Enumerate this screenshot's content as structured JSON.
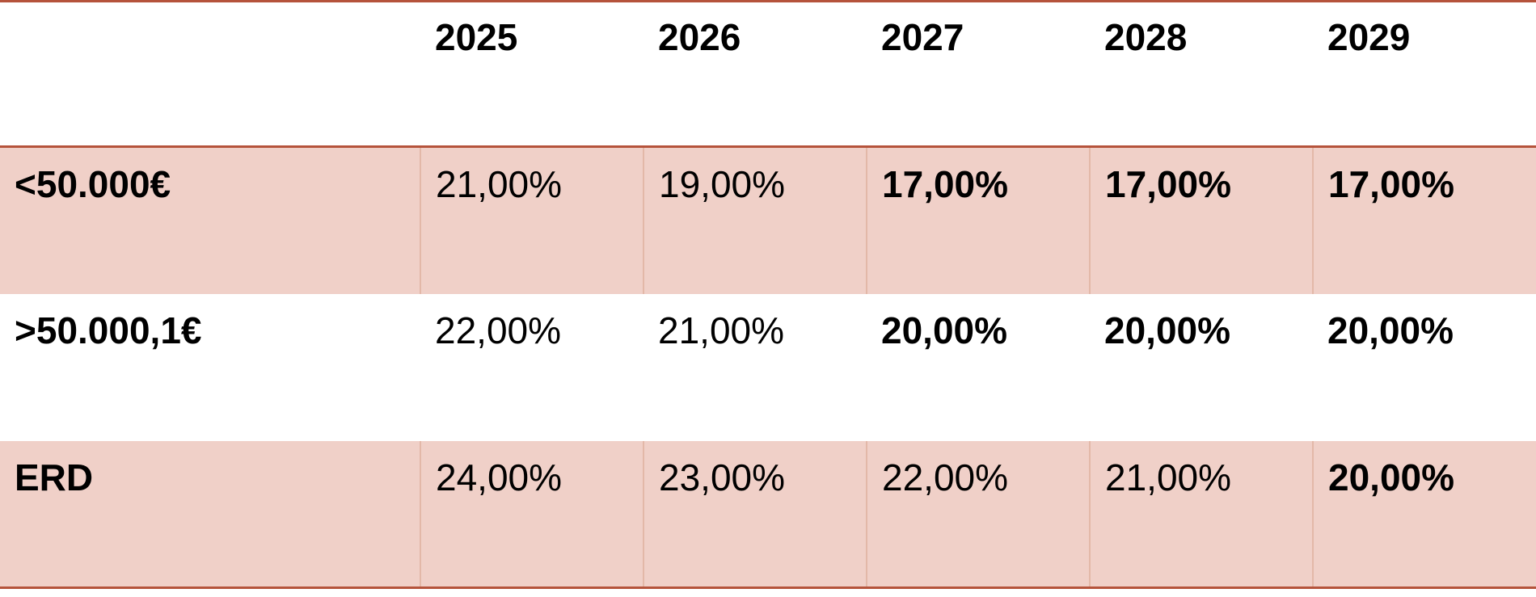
{
  "table": {
    "headers": [
      "",
      "2025",
      "2026",
      "2027",
      "2028",
      "2029"
    ],
    "rows": [
      {
        "label": "<50.000€",
        "cells": [
          {
            "value": "21,00%",
            "bold": false
          },
          {
            "value": "19,00%",
            "bold": false
          },
          {
            "value": "17,00%",
            "bold": true
          },
          {
            "value": "17,00%",
            "bold": true
          },
          {
            "value": "17,00%",
            "bold": true
          }
        ]
      },
      {
        "label": ">50.000,1€",
        "cells": [
          {
            "value": "22,00%",
            "bold": false
          },
          {
            "value": "21,00%",
            "bold": false
          },
          {
            "value": "20,00%",
            "bold": true
          },
          {
            "value": "20,00%",
            "bold": true
          },
          {
            "value": "20,00%",
            "bold": true
          }
        ]
      },
      {
        "label": "ERD",
        "cells": [
          {
            "value": "24,00%",
            "bold": false
          },
          {
            "value": "23,00%",
            "bold": false
          },
          {
            "value": "22,00%",
            "bold": false
          },
          {
            "value": "21,00%",
            "bold": false
          },
          {
            "value": "20,00%",
            "bold": true
          }
        ]
      }
    ],
    "colors": {
      "accent_border": "#b5533b",
      "row_fill": "#f0d0c8",
      "divider": "#e3b8a8"
    }
  }
}
